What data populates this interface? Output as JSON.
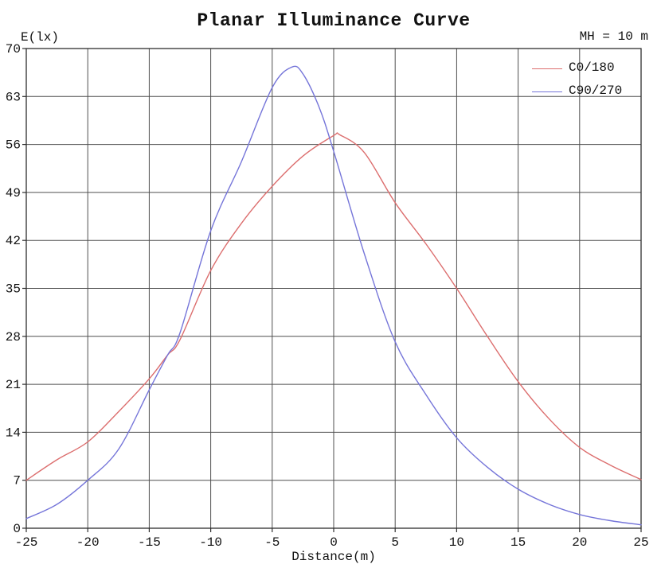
{
  "title": "Planar Illuminance Curve",
  "annotation": "MH = 10 m",
  "axes": {
    "y_unit_label": "E(lx)",
    "x_axis_label": "Distance(m)"
  },
  "colors": {
    "background": "#ffffff",
    "grid": "#4f4f4f",
    "border": "#2e2e2e",
    "text": "#111111",
    "series_c0_180": "#dc6e6e",
    "series_c90_270": "#7575d9"
  },
  "chart_data": {
    "type": "line",
    "title": "Planar Illuminance Curve",
    "annotation": "MH = 10 m",
    "xlabel": "Distance(m)",
    "ylabel": "E(lx)",
    "xlim": [
      -25,
      25
    ],
    "ylim": [
      0,
      70
    ],
    "x_ticks": [
      -25,
      -20,
      -15,
      -10,
      -5,
      0,
      5,
      10,
      15,
      20,
      25
    ],
    "y_ticks": [
      0,
      7,
      14,
      21,
      28,
      35,
      42,
      49,
      56,
      63,
      70
    ],
    "grid": true,
    "legend_position": "top-right",
    "series": [
      {
        "name": "C0/180",
        "color": "#dc6e6e",
        "peak": {
          "x": 0.5,
          "value": 57.4
        },
        "points": [
          [
            -25,
            7.0
          ],
          [
            -22.5,
            10.0
          ],
          [
            -20,
            12.6
          ],
          [
            -17.5,
            17.0
          ],
          [
            -15,
            21.8
          ],
          [
            -13.5,
            25.3
          ],
          [
            -12.5,
            27.5
          ],
          [
            -10,
            37.6
          ],
          [
            -7.5,
            44.5
          ],
          [
            -5,
            49.9
          ],
          [
            -2.5,
            54.3
          ],
          [
            0,
            57.3
          ],
          [
            0.5,
            57.4
          ],
          [
            2.5,
            54.8
          ],
          [
            5,
            47.5
          ],
          [
            7.5,
            41.5
          ],
          [
            10,
            35.0
          ],
          [
            12.5,
            28.0
          ],
          [
            15,
            21.4
          ],
          [
            17.5,
            16.0
          ],
          [
            20,
            11.8
          ],
          [
            22.5,
            9.2
          ],
          [
            25,
            7.1
          ]
        ]
      },
      {
        "name": "C90/270",
        "color": "#7575d9",
        "peak": {
          "x": -3.4,
          "value": 67.3
        },
        "points": [
          [
            -25,
            1.4
          ],
          [
            -22.5,
            3.5
          ],
          [
            -20,
            7.0
          ],
          [
            -17.5,
            11.5
          ],
          [
            -15,
            20.2
          ],
          [
            -13.5,
            25.3
          ],
          [
            -12.5,
            28.5
          ],
          [
            -10,
            43.4
          ],
          [
            -7.5,
            53.5
          ],
          [
            -5,
            64.3
          ],
          [
            -3.4,
            67.3
          ],
          [
            -2.5,
            66.3
          ],
          [
            -1.2,
            61.5
          ],
          [
            0,
            55.0
          ],
          [
            2.5,
            40.0
          ],
          [
            5,
            27.2
          ],
          [
            7.5,
            19.5
          ],
          [
            10,
            13.2
          ],
          [
            12.5,
            8.9
          ],
          [
            15,
            5.7
          ],
          [
            17.5,
            3.5
          ],
          [
            20,
            2.0
          ],
          [
            22.5,
            1.1
          ],
          [
            25,
            0.5
          ]
        ]
      }
    ]
  }
}
